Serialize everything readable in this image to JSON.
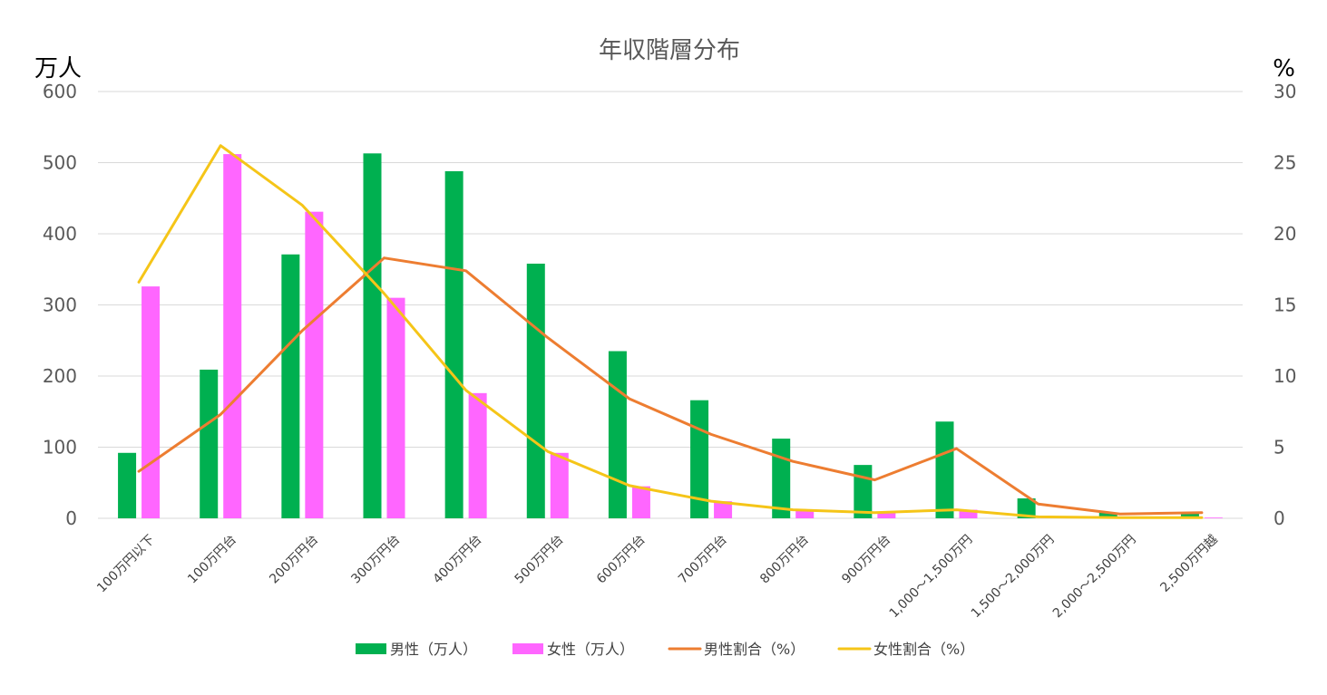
{
  "chart_data": {
    "type": "bar",
    "title": "年収階層分布",
    "ylabel": "万人",
    "y2label": "%",
    "ylim": [
      0,
      600
    ],
    "y2lim": [
      0,
      30
    ],
    "yticks": [
      0,
      100,
      200,
      300,
      400,
      500,
      600
    ],
    "y2ticks": [
      0,
      5,
      10,
      15,
      20,
      25,
      30
    ],
    "grid": true,
    "legend_position": "bottom",
    "categories": [
      "100万円以下",
      "100万円台",
      "200万円台",
      "300万円台",
      "400万円台",
      "500万円台",
      "600万円台",
      "700万円台",
      "800万円台",
      "900万円台",
      "1,000～1,500万円",
      "1,500～2,000万円",
      "2,000～2,500万円",
      "2,500万円越"
    ],
    "series": [
      {
        "name": "男性（万人）",
        "type": "bar",
        "axis": "left",
        "color": "#00b050",
        "values": [
          92,
          209,
          371,
          513,
          488,
          358,
          235,
          166,
          112,
          75,
          136,
          28,
          8,
          8
        ]
      },
      {
        "name": "女性（万人）",
        "type": "bar",
        "axis": "left",
        "color": "#ff66ff",
        "values": [
          326,
          512,
          431,
          310,
          176,
          92,
          45,
          24,
          12,
          8,
          12,
          3,
          1,
          1
        ]
      },
      {
        "name": "男性割合（%）",
        "type": "line",
        "axis": "right",
        "color": "#ed7d31",
        "values": [
          3.3,
          7.3,
          13.2,
          18.3,
          17.4,
          12.7,
          8.4,
          5.9,
          4.0,
          2.7,
          4.9,
          1.0,
          0.3,
          0.4
        ]
      },
      {
        "name": "女性割合（%）",
        "type": "line",
        "axis": "right",
        "color": "#f5c518",
        "values": [
          16.6,
          26.2,
          22.0,
          15.8,
          9.0,
          4.7,
          2.3,
          1.2,
          0.6,
          0.4,
          0.6,
          0.1,
          0.05,
          0.05
        ]
      }
    ]
  }
}
